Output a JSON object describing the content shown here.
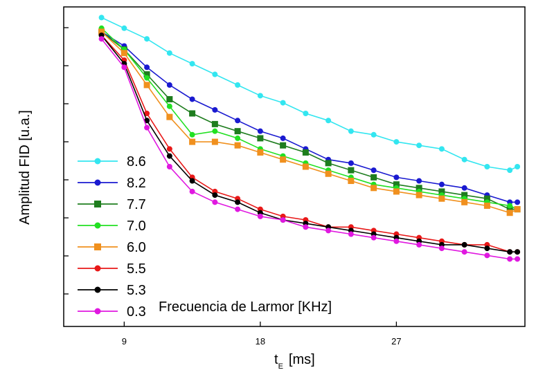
{
  "chart_data": {
    "type": "line",
    "title": "",
    "xlabel": "t",
    "xlabel_sub": "E",
    "xlabel_unit": "[ms]",
    "ylabel": "Amplitud FID [u.a.]",
    "xlim": [
      5,
      35.5
    ],
    "ylim": [
      0.15,
      1.05
    ],
    "x_ticks": [
      9,
      18,
      27
    ],
    "y_ticks_labeled": false,
    "legend_title": "Frecuencia de Larmor [KHz]",
    "legend_position": "bottom-left",
    "grid": false,
    "series": [
      {
        "name": "8.6",
        "color": "#33e6f0",
        "marker": "circle",
        "x": [
          7.5,
          9,
          10.5,
          12,
          13.5,
          15,
          16.5,
          18,
          19.5,
          21,
          22.5,
          24,
          25.5,
          27,
          28.5,
          30,
          31.5,
          33,
          34.5,
          35
        ],
        "y": [
          1.02,
          0.99,
          0.96,
          0.92,
          0.89,
          0.86,
          0.83,
          0.8,
          0.78,
          0.75,
          0.73,
          0.7,
          0.69,
          0.67,
          0.66,
          0.65,
          0.62,
          0.6,
          0.59,
          0.6
        ]
      },
      {
        "name": "8.2",
        "color": "#1a1ad0",
        "marker": "circle",
        "x": [
          7.5,
          9,
          10.5,
          12,
          13.5,
          15,
          16.5,
          18,
          19.5,
          21,
          22.5,
          24,
          25.5,
          27,
          28.5,
          30,
          31.5,
          33,
          34.5,
          35
        ],
        "y": [
          0.98,
          0.94,
          0.88,
          0.83,
          0.79,
          0.76,
          0.73,
          0.7,
          0.68,
          0.65,
          0.62,
          0.61,
          0.59,
          0.57,
          0.56,
          0.55,
          0.54,
          0.52,
          0.5,
          0.5
        ]
      },
      {
        "name": "7.7",
        "color": "#1e7d1e",
        "marker": "square",
        "x": [
          7.5,
          9,
          10.5,
          12,
          13.5,
          15,
          16.5,
          18,
          19.5,
          21,
          22.5,
          24,
          25.5,
          27,
          28.5,
          30,
          31.5,
          33,
          34.5,
          35
        ],
        "y": [
          0.98,
          0.93,
          0.86,
          0.79,
          0.75,
          0.72,
          0.7,
          0.68,
          0.66,
          0.64,
          0.61,
          0.59,
          0.57,
          0.55,
          0.54,
          0.53,
          0.52,
          0.51,
          0.48,
          0.48
        ]
      },
      {
        "name": "7.0",
        "color": "#22e022",
        "marker": "circle",
        "x": [
          7.5,
          9,
          10.5,
          12,
          13.5,
          15,
          16.5,
          18,
          19.5,
          21,
          22.5,
          24,
          25.5,
          27,
          28.5,
          30,
          31.5,
          33,
          34.5,
          35
        ],
        "y": [
          0.99,
          0.93,
          0.85,
          0.77,
          0.69,
          0.7,
          0.68,
          0.65,
          0.63,
          0.61,
          0.59,
          0.57,
          0.55,
          0.54,
          0.53,
          0.52,
          0.51,
          0.5,
          0.49,
          0.48
        ]
      },
      {
        "name": "6.0",
        "color": "#f0901e",
        "marker": "square",
        "x": [
          7.5,
          9,
          10.5,
          12,
          13.5,
          15,
          16.5,
          18,
          19.5,
          21,
          22.5,
          24,
          25.5,
          27,
          28.5,
          30,
          31.5,
          33,
          34.5,
          35
        ],
        "y": [
          0.98,
          0.92,
          0.83,
          0.74,
          0.67,
          0.67,
          0.66,
          0.64,
          0.62,
          0.6,
          0.58,
          0.56,
          0.54,
          0.53,
          0.52,
          0.51,
          0.5,
          0.49,
          0.47,
          0.48
        ]
      },
      {
        "name": "5.5",
        "color": "#e81818",
        "marker": "circle",
        "x": [
          7.5,
          9,
          10.5,
          12,
          13.5,
          15,
          16.5,
          18,
          19.5,
          21,
          22.5,
          24,
          25.5,
          27,
          28.5,
          30,
          31.5,
          33,
          34.5,
          35
        ],
        "y": [
          0.97,
          0.9,
          0.75,
          0.65,
          0.57,
          0.53,
          0.51,
          0.48,
          0.46,
          0.45,
          0.43,
          0.43,
          0.42,
          0.41,
          0.4,
          0.39,
          0.38,
          0.38,
          0.36,
          0.36
        ]
      },
      {
        "name": "5.3",
        "color": "#000000",
        "marker": "circle",
        "x": [
          7.5,
          9,
          10.5,
          12,
          13.5,
          15,
          16.5,
          18,
          19.5,
          21,
          22.5,
          24,
          25.5,
          27,
          28.5,
          30,
          31.5,
          33,
          34.5,
          35
        ],
        "y": [
          0.97,
          0.89,
          0.73,
          0.63,
          0.56,
          0.52,
          0.5,
          0.47,
          0.45,
          0.44,
          0.43,
          0.42,
          0.41,
          0.4,
          0.39,
          0.38,
          0.38,
          0.37,
          0.36,
          0.36
        ]
      },
      {
        "name": "0.3",
        "color": "#e018e0",
        "marker": "circle",
        "x": [
          7.5,
          9,
          10.5,
          12,
          13.5,
          15,
          16.5,
          18,
          19.5,
          21,
          22.5,
          24,
          25.5,
          27,
          28.5,
          30,
          31.5,
          33,
          34.5,
          35
        ],
        "y": [
          0.96,
          0.88,
          0.71,
          0.6,
          0.53,
          0.5,
          0.48,
          0.46,
          0.45,
          0.43,
          0.42,
          0.41,
          0.4,
          0.39,
          0.38,
          0.37,
          0.36,
          0.35,
          0.34,
          0.34
        ]
      }
    ]
  }
}
